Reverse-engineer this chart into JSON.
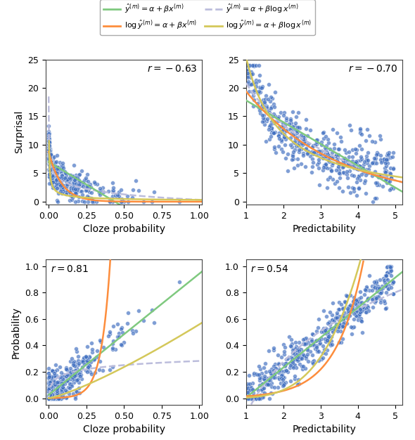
{
  "colors": {
    "lin_lin": "#7fc97f",
    "log_lin": "#fd8d3c",
    "lin_log": "#bcbddc",
    "log_log": "#d4c85a"
  },
  "dot_color": "#3a6bbf",
  "dot_size": 18,
  "dot_alpha": 0.65,
  "dot_edge_color": "white",
  "dot_edge_width": 0.4,
  "line_width": 1.8,
  "bg_color": "white",
  "figsize": [
    5.9,
    6.26
  ],
  "dpi": 100,
  "subplots": [
    {
      "r": "-0.63",
      "r_pos": "upper right",
      "xlabel": "Cloze probability",
      "ylabel": "Surprisal",
      "xlim": [
        -0.02,
        1.02
      ],
      "ylim": [
        -0.5,
        25
      ],
      "xticks": [
        0.0,
        0.25,
        0.5,
        0.75,
        1.0
      ],
      "yticks": [
        0,
        5,
        10,
        15,
        20,
        25
      ]
    },
    {
      "r": "-0.70",
      "r_pos": "upper right",
      "xlabel": "Predictability",
      "ylabel": "Surprisal",
      "xlim": [
        1.0,
        5.2
      ],
      "ylim": [
        -0.5,
        25
      ],
      "xticks": [
        1,
        2,
        3,
        4,
        5
      ],
      "yticks": [
        0,
        5,
        10,
        15,
        20,
        25
      ]
    },
    {
      "r": "0.81",
      "r_pos": "upper left",
      "xlabel": "Cloze probability",
      "ylabel": "Probability",
      "xlim": [
        -0.02,
        1.02
      ],
      "ylim": [
        -0.05,
        1.05
      ],
      "xticks": [
        0.0,
        0.25,
        0.5,
        0.75,
        1.0
      ],
      "yticks": [
        0.0,
        0.2,
        0.4,
        0.6,
        0.8,
        1.0
      ]
    },
    {
      "r": "0.54",
      "r_pos": "upper left",
      "xlabel": "Predictability",
      "ylabel": "Probability",
      "xlim": [
        1.0,
        5.2
      ],
      "ylim": [
        -0.05,
        1.05
      ],
      "xticks": [
        1,
        2,
        3,
        4,
        5
      ],
      "yticks": [
        0.0,
        0.2,
        0.4,
        0.6,
        0.8,
        1.0
      ]
    }
  ]
}
